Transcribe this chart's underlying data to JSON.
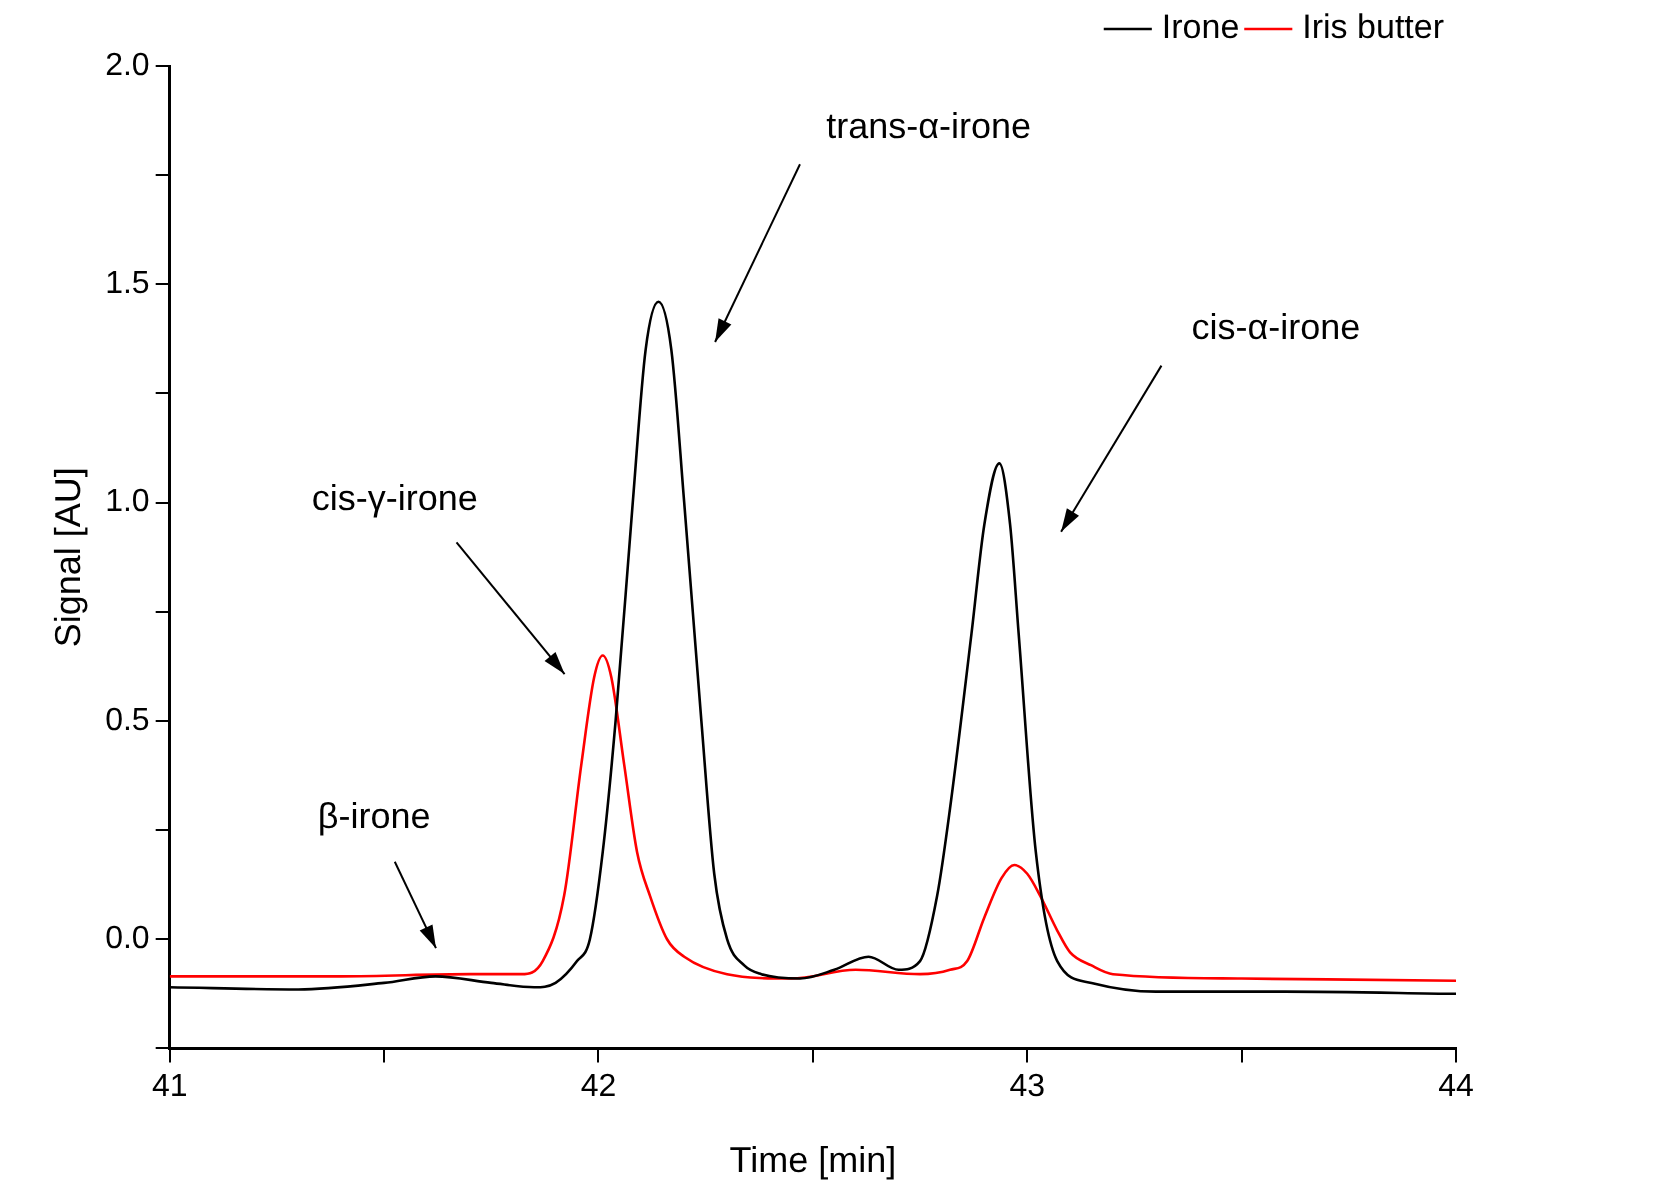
{
  "chart_data": {
    "type": "line",
    "xlabel": "Time [min]",
    "ylabel": "Signal [AU]",
    "xlim": [
      41,
      44
    ],
    "xticks": [
      41,
      {
        "value": 41.5,
        "label": null
      },
      42,
      {
        "value": 42.5,
        "label": null
      },
      43,
      {
        "value": 43.5,
        "label": null
      },
      44
    ],
    "ylim": [
      -0.25,
      2.0
    ],
    "yticks": [
      {
        "value": -0.25,
        "label": null
      },
      {
        "value": 0,
        "label": "0.0"
      },
      {
        "value": 0.25,
        "label": null
      },
      0.5,
      {
        "value": 0.75,
        "label": null
      },
      {
        "value": 1,
        "label": "1.0"
      },
      {
        "value": 1.25,
        "label": null
      },
      1.5,
      {
        "value": 1.75,
        "label": null
      },
      {
        "value": 2,
        "label": "2.0"
      }
    ],
    "grid": false,
    "legend": "top right",
    "marker": "none",
    "line_style": "solid",
    "series": [
      {
        "name": "Irone",
        "color": "#000000",
        "x": [
          41,
          41.3,
          41.5,
          41.62,
          41.75,
          41.85,
          41.9,
          41.95,
          41.98,
          42.01,
          42.04,
          42.08,
          42.11,
          42.14,
          42.17,
          42.2,
          42.24,
          42.27,
          42.3,
          42.34,
          42.38,
          42.47,
          42.55,
          42.63,
          42.7,
          42.75,
          42.79,
          42.82,
          42.87,
          42.9,
          42.935,
          42.96,
          42.98,
          43.02,
          43.07,
          43.15,
          43.3,
          43.6,
          44
        ],
        "values": [
          -0.11,
          -0.115,
          -0.1,
          -0.085,
          -0.1,
          -0.11,
          -0.1,
          -0.05,
          0,
          0.2,
          0.5,
          1.0,
          1.35,
          1.46,
          1.35,
          1.0,
          0.5,
          0.15,
          0,
          -0.06,
          -0.08,
          -0.09,
          -0.07,
          -0.04,
          -0.07,
          -0.05,
          0.1,
          0.3,
          0.7,
          0.95,
          1.09,
          0.95,
          0.7,
          0.2,
          -0.05,
          -0.1,
          -0.12,
          -0.12,
          -0.125
        ]
      },
      {
        "name": "Iris butter",
        "color": "#ff0000",
        "x": [
          41,
          41.4,
          41.7,
          41.82,
          41.87,
          41.92,
          41.96,
          41.99,
          42.01,
          42.03,
          42.06,
          42.09,
          42.12,
          42.16,
          42.2,
          42.3,
          42.45,
          42.6,
          42.75,
          42.82,
          42.86,
          42.9,
          42.94,
          42.97,
          43.0,
          43.03,
          43.07,
          43.1,
          43.15,
          43.2,
          43.5,
          44
        ],
        "values": [
          -0.085,
          -0.085,
          -0.08,
          -0.08,
          -0.05,
          0.1,
          0.4,
          0.6,
          0.65,
          0.6,
          0.4,
          0.2,
          0.1,
          0.0,
          -0.04,
          -0.08,
          -0.09,
          -0.07,
          -0.08,
          -0.07,
          -0.05,
          0.05,
          0.14,
          0.17,
          0.15,
          0.1,
          0.02,
          -0.03,
          -0.06,
          -0.08,
          -0.09,
          -0.095
        ]
      }
    ],
    "annotations": [
      "trans-α-irone",
      "cis-α-irone",
      "cis-γ-irone",
      "β-irone"
    ]
  }
}
